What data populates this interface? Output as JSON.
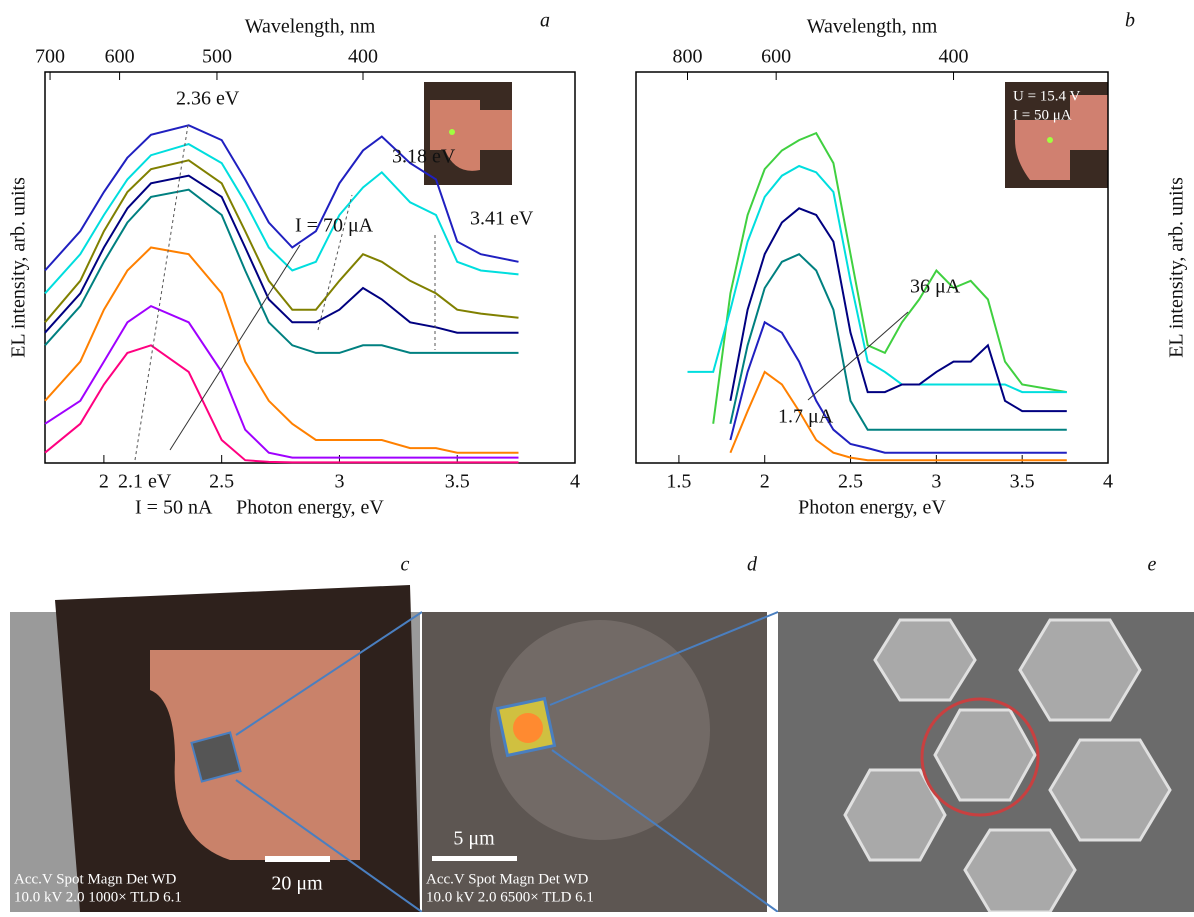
{
  "chart_data": [
    {
      "type": "line",
      "panel": "a",
      "xlabel": "Photon energy, eV",
      "ylabel": "EL intensity, arb. units",
      "x2label": "Wavelength, nm",
      "log_y": true,
      "xlim": [
        1.75,
        4.0
      ],
      "xticks": [
        2.0,
        2.5,
        3.0,
        3.5,
        4.0
      ],
      "ylim": [
        1,
        1000
      ],
      "x2ticks": [
        700,
        600,
        500,
        400
      ],
      "annotations": [
        "2.36 eV",
        "3.18 eV",
        "3.41 eV",
        "2.1 eV",
        "I = 70 μA",
        "I = 50 nA"
      ],
      "x": [
        1.75,
        1.9,
        2.0,
        2.1,
        2.2,
        2.36,
        2.5,
        2.6,
        2.7,
        2.8,
        2.9,
        3.0,
        3.1,
        3.18,
        3.3,
        3.41,
        3.5,
        3.6,
        3.76
      ],
      "series": [
        {
          "color": "#2020c0",
          "values": [
            30,
            60,
            120,
            220,
            330,
            390,
            300,
            150,
            70,
            45,
            60,
            140,
            250,
            320,
            200,
            150,
            50,
            40,
            35
          ]
        },
        {
          "color": "#00dede",
          "values": [
            20,
            40,
            80,
            150,
            230,
            280,
            200,
            100,
            45,
            30,
            35,
            80,
            130,
            170,
            100,
            80,
            35,
            30,
            28
          ]
        },
        {
          "color": "#808000",
          "values": [
            12,
            25,
            60,
            120,
            180,
            210,
            140,
            60,
            25,
            15,
            15,
            25,
            40,
            35,
            25,
            20,
            15,
            14,
            13
          ]
        },
        {
          "color": "#000080",
          "values": [
            10,
            20,
            45,
            90,
            140,
            160,
            110,
            45,
            18,
            12,
            12,
            15,
            22,
            18,
            12,
            11,
            10,
            10,
            10
          ]
        },
        {
          "color": "#008080",
          "values": [
            8,
            16,
            35,
            70,
            110,
            125,
            80,
            30,
            12,
            8,
            7,
            7,
            8,
            8,
            7,
            7,
            7,
            7,
            7
          ]
        },
        {
          "color": "#ff8000",
          "values": [
            3,
            6,
            15,
            30,
            45,
            40,
            20,
            6,
            3,
            2,
            1.5,
            1.5,
            1.5,
            1.5,
            1.3,
            1.3,
            1.2,
            1.2,
            1.2
          ]
        },
        {
          "color": "#a000ff",
          "values": [
            2,
            3,
            6,
            12,
            16,
            12,
            5,
            1.8,
            1.2,
            1.1,
            1.1,
            1.1,
            1.1,
            1.1,
            1.1,
            1.1,
            1.1,
            1.1,
            1.1
          ]
        },
        {
          "color": "#ff0080",
          "values": [
            1.2,
            2,
            4,
            7,
            8,
            5,
            1.5,
            1.05,
            1.02,
            1.01,
            1.01,
            1.01,
            1.01,
            1.01,
            1.01,
            1.01,
            1.01,
            1.01,
            1.01
          ]
        }
      ]
    },
    {
      "type": "line",
      "panel": "b",
      "xlabel": "Photon energy, eV",
      "ylabel": "EL intensity, arb. units",
      "x2label": "Wavelength, nm",
      "log_y": true,
      "xlim": [
        1.25,
        4.0
      ],
      "xticks": [
        1.5,
        2.0,
        2.5,
        3.0,
        3.5,
        4.0
      ],
      "ylim": [
        1,
        1000
      ],
      "x2ticks": [
        800,
        600,
        400
      ],
      "annotations": [
        "36 μA",
        "1.7 μA"
      ],
      "inset_labels": [
        "U = 15.4 V",
        "I = 50 μA"
      ],
      "x": [
        1.55,
        1.7,
        1.8,
        1.9,
        2.0,
        2.1,
        2.2,
        2.3,
        2.4,
        2.5,
        2.6,
        2.7,
        2.8,
        2.9,
        3.0,
        3.1,
        3.2,
        3.3,
        3.4,
        3.5,
        3.76
      ],
      "series": [
        {
          "color": "#40d040",
          "values": [
            null,
            2,
            20,
            80,
            180,
            250,
            300,
            340,
            200,
            40,
            8,
            7,
            12,
            18,
            30,
            22,
            25,
            18,
            6,
            4,
            3.5
          ]
        },
        {
          "color": "#00dede",
          "values": [
            5,
            5,
            15,
            50,
            110,
            160,
            190,
            170,
            120,
            25,
            6,
            5,
            4,
            4,
            4,
            4,
            4,
            4,
            4,
            3.5,
            3.5
          ]
        },
        {
          "color": "#000080",
          "values": [
            null,
            null,
            3,
            15,
            40,
            70,
            90,
            80,
            50,
            10,
            3.5,
            3.5,
            4,
            4,
            5,
            6,
            6,
            8,
            3,
            2.5,
            2.5
          ]
        },
        {
          "color": "#008080",
          "values": [
            null,
            null,
            2,
            8,
            22,
            35,
            40,
            30,
            15,
            3,
            1.8,
            1.8,
            1.8,
            1.8,
            1.8,
            1.8,
            1.8,
            1.8,
            1.8,
            1.8,
            1.8
          ]
        },
        {
          "color": "#2020c0",
          "values": [
            null,
            null,
            1.5,
            5,
            12,
            10,
            6,
            3,
            1.8,
            1.4,
            1.3,
            1.2,
            1.2,
            1.2,
            1.2,
            1.2,
            1.2,
            1.2,
            1.2,
            1.2,
            1.2
          ]
        },
        {
          "color": "#ff8000",
          "values": [
            null,
            null,
            1.2,
            2.5,
            5,
            4,
            2.5,
            1.5,
            1.2,
            1.1,
            1.05,
            1.05,
            1.05,
            1.05,
            1.05,
            1.05,
            1.05,
            1.05,
            1.05,
            1.05,
            1.05
          ]
        }
      ]
    }
  ],
  "images": [
    {
      "panel": "c",
      "info_header": "Acc.V   Spot Magn   Det  WD",
      "info_values": "10.0 kV  2.0  1000×  TLD  6.1",
      "scale_bar": "20 μm"
    },
    {
      "panel": "d",
      "info_header": "Acc.V   Spot Magn   Det  WD",
      "info_values": "10.0 kV  2.0  6500×  TLD  6.1",
      "scale_bar": "5 μm"
    },
    {
      "panel": "e"
    }
  ]
}
